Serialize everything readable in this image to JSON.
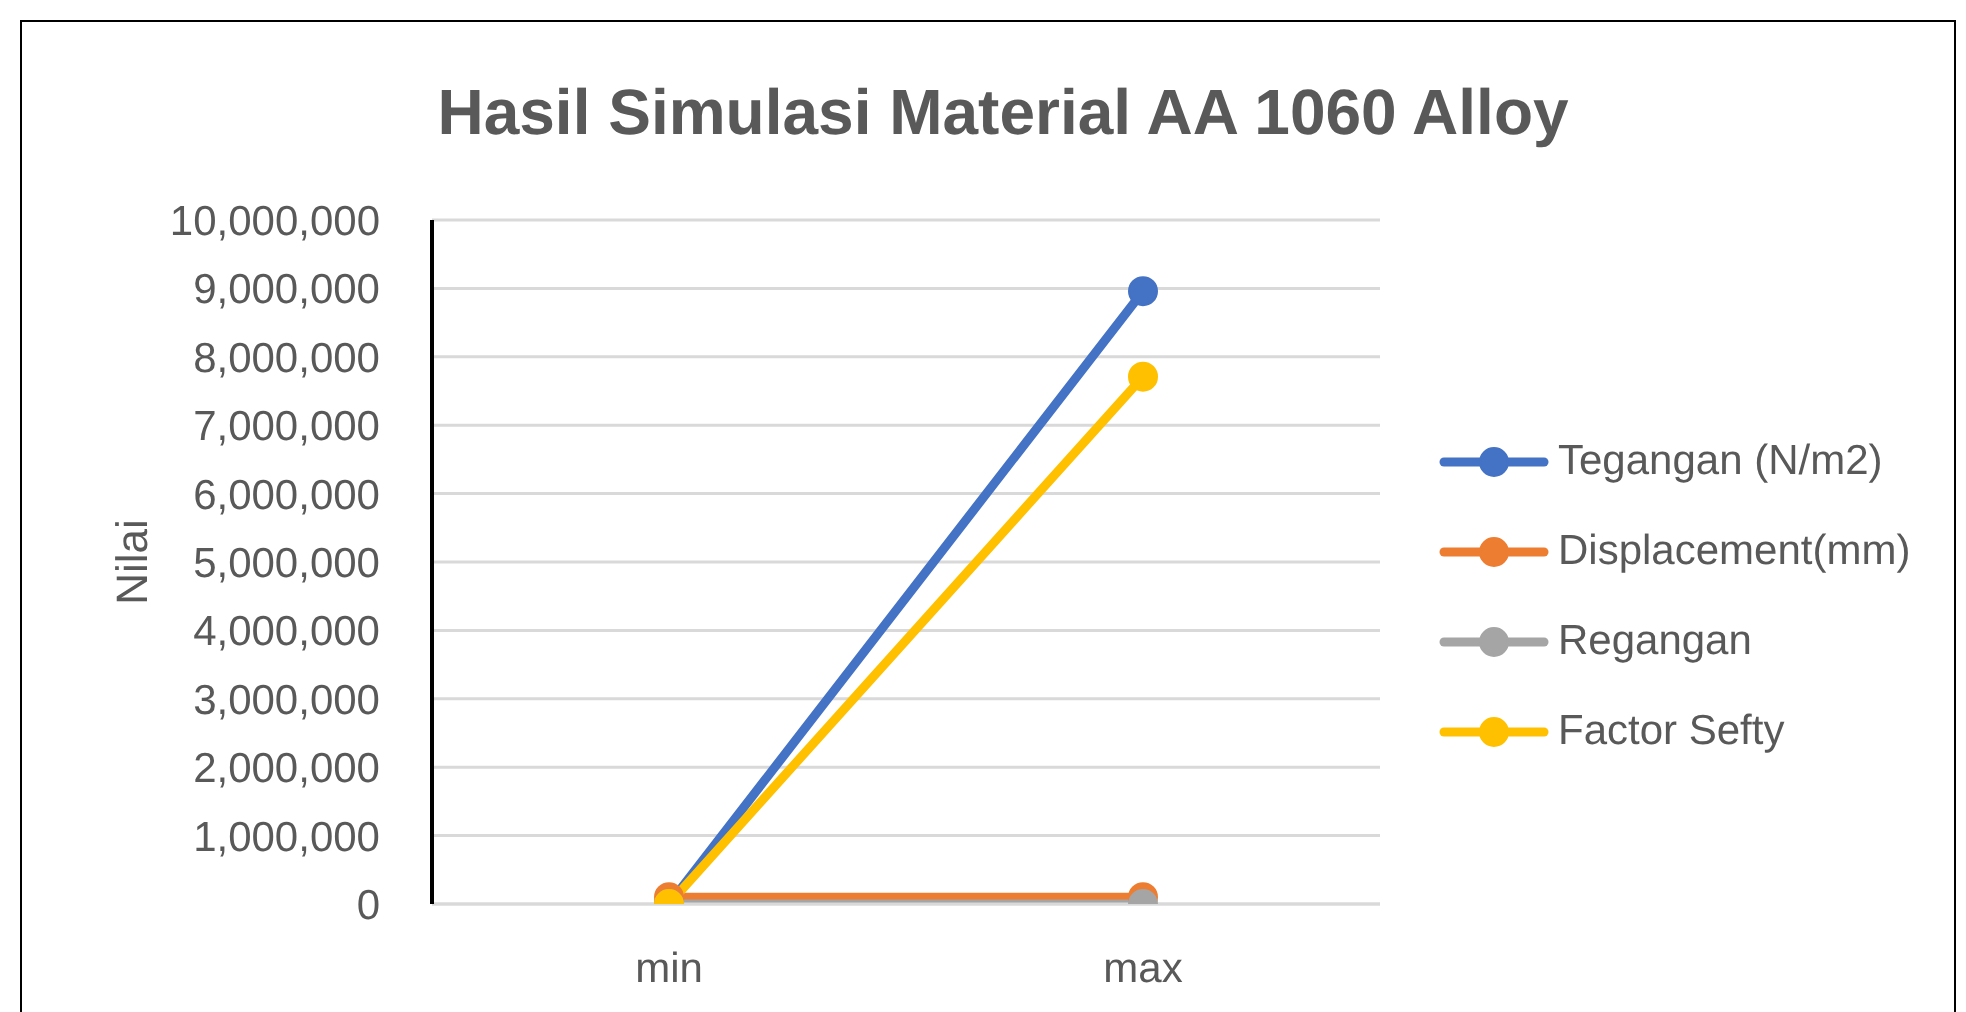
{
  "chart_data": {
    "type": "line",
    "title": "Hasil Simulasi Material AA 1060 Alloy",
    "ylabel": "Nilai",
    "categories": [
      "min",
      "max"
    ],
    "series": [
      {
        "name": "Tegangan (N/m2)",
        "color": "#4472c4",
        "values": [
          0,
          8960000
        ]
      },
      {
        "name": "Displacement(mm)",
        "color": "#ed7d31",
        "values": [
          100000,
          100000
        ]
      },
      {
        "name": "Regangan",
        "color": "#a5a5a5",
        "values": [
          0,
          0
        ]
      },
      {
        "name": "Factor Sefty",
        "color": "#ffc000",
        "values": [
          0,
          7710000
        ]
      }
    ],
    "ylim": [
      0,
      10000000
    ],
    "yticks": [
      0,
      {
        "value": 1000000,
        "label": "1,000,000"
      },
      {
        "value": 2000000,
        "label": "2,000,000"
      },
      {
        "value": 3000000,
        "label": "3,000,000"
      },
      {
        "value": 4000000,
        "label": "4,000,000"
      },
      {
        "value": 5000000,
        "label": "5,000,000"
      },
      {
        "value": 6000000,
        "label": "6,000,000"
      },
      {
        "value": 7000000,
        "label": "7,000,000"
      },
      {
        "value": 8000000,
        "label": "8,000,000"
      },
      {
        "value": 9000000,
        "label": "9,000,000"
      },
      {
        "value": 10000000,
        "label": "10,000,000"
      }
    ],
    "grid": "y",
    "legend": "right",
    "marker": "circle"
  }
}
